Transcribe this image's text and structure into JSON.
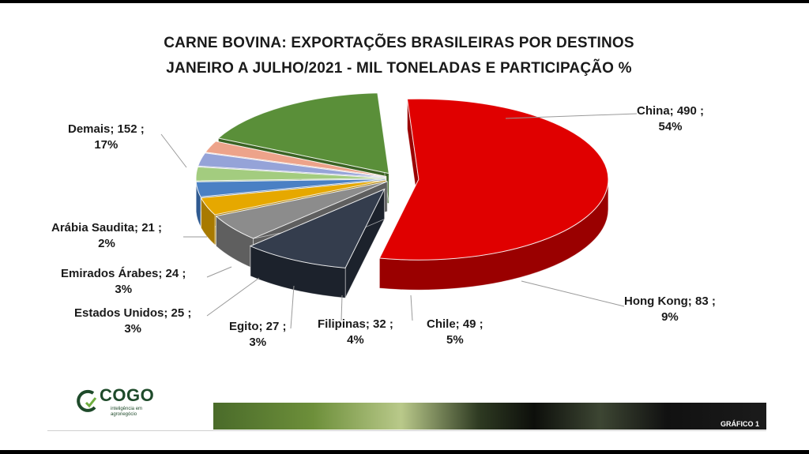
{
  "chart_data": {
    "type": "pie",
    "title": "CARNE BOVINA: EXPORTAÇÕES BRASILEIRAS POR DESTINOS",
    "subtitle": "JANEIRO A JULHO/2021 -  MIL TONELADAS E PARTICIPAÇÃO %",
    "slices": [
      {
        "label": "China",
        "value": 490,
        "percent": "54%",
        "text": "China; 490 ;",
        "color": "#e00000",
        "side": "#9a0000"
      },
      {
        "label": "Hong Kong",
        "value": 83,
        "percent": "9%",
        "text": "Hong Kong; 83 ;",
        "color": "#343d4d",
        "side": "#1c222c"
      },
      {
        "label": "Chile",
        "value": 49,
        "percent": "5%",
        "text": "Chile; 49 ;",
        "color": "#8c8c8c",
        "side": "#5f5f5f"
      },
      {
        "label": "Filipinas",
        "value": 32,
        "percent": "4%",
        "text": "Filipinas; 32 ;",
        "color": "#e6a800",
        "side": "#a87a00"
      },
      {
        "label": "Egito",
        "value": 27,
        "percent": "3%",
        "text": "Egito; 27 ;",
        "color": "#4a80c4",
        "side": "#2f5a90"
      },
      {
        "label": "Estados Unidos",
        "value": 25,
        "percent": "3%",
        "text": "Estados Unidos; 25 ;",
        "color": "#a3cc7f",
        "side": "#73985a"
      },
      {
        "label": "Emirados Árabes",
        "value": 24,
        "percent": "3%",
        "text": "Emirados Árabes; 24 ;",
        "color": "#95a3d8",
        "side": "#6b77a6"
      },
      {
        "label": "Arábia Saudita",
        "value": 21,
        "percent": "2%",
        "text": "Arábia Saudita; 21 ;",
        "color": "#eda38a",
        "side": "#b87662"
      },
      {
        "label": "Demais",
        "value": 152,
        "percent": "17%",
        "text": "Demais; 152 ;",
        "color": "#5a8f39",
        "side": "#3b6324"
      }
    ]
  },
  "logo": {
    "name": "COGO",
    "tagline1": "inteligência em",
    "tagline2": "agronegócio"
  },
  "footer": {
    "label": "GRÁFICO 1"
  }
}
